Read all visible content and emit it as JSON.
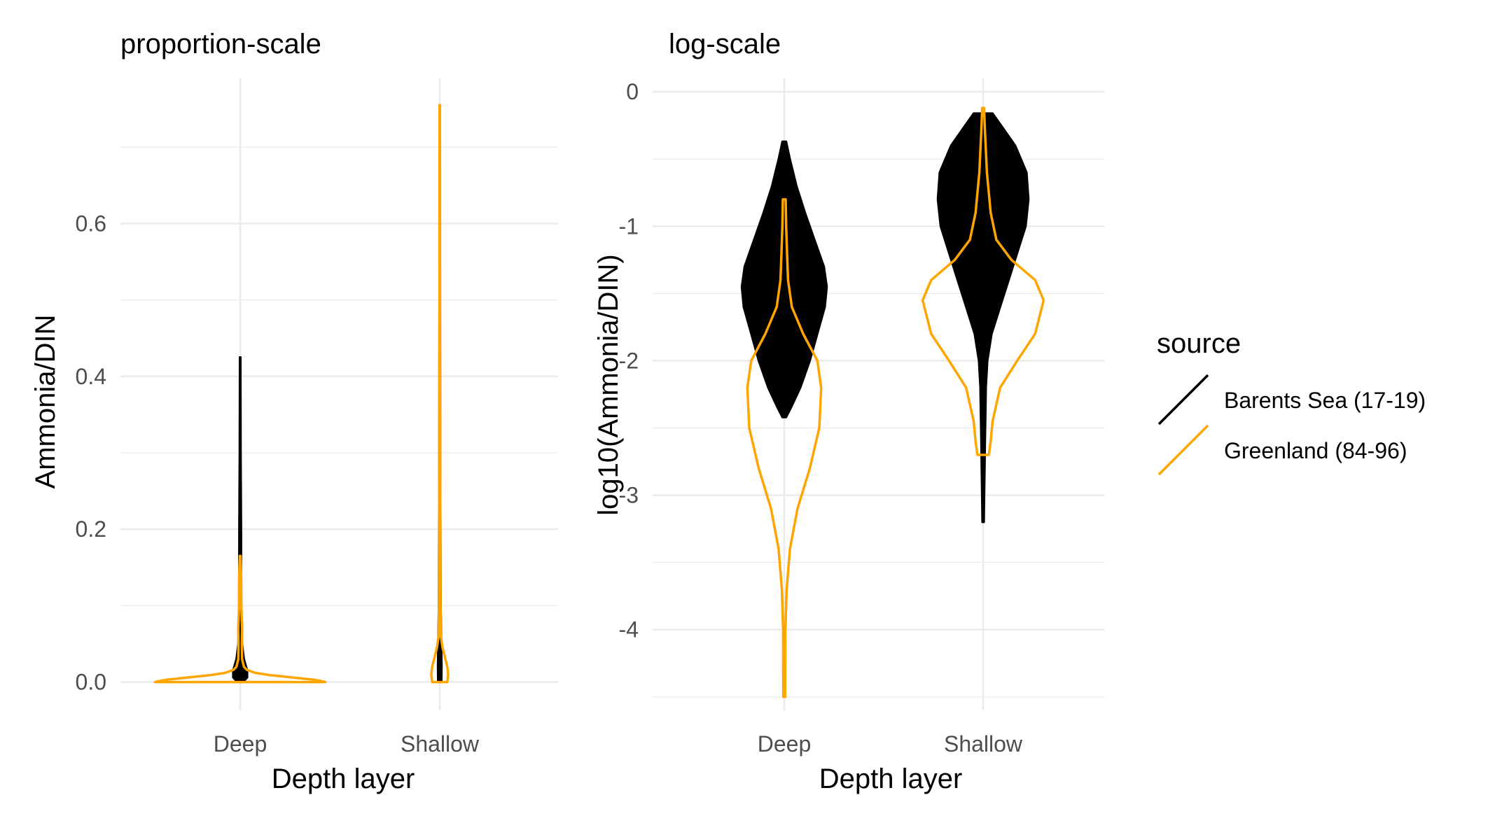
{
  "chart_data": [
    {
      "type": "violin",
      "title": "proportion-scale",
      "xlabel": "Depth layer",
      "ylabel": "Ammonia/DIN",
      "categories": [
        "Deep",
        "Shallow"
      ],
      "ylim": [
        -0.037,
        0.79
      ],
      "yticks": [
        0.0,
        0.2,
        0.4,
        0.6
      ],
      "ytick_labels": [
        "0.0",
        "0.2",
        "0.4",
        "0.6"
      ],
      "grid": true,
      "series": [
        {
          "name": "Barents Sea (17-19)",
          "color": "#000000",
          "fill": true,
          "violins": {
            "Deep": [
              [
                0.0,
                0.03
              ],
              [
                0.006,
                0.075
              ],
              [
                0.015,
                0.075
              ],
              [
                0.03,
                0.04
              ],
              [
                0.05,
                0.02
              ],
              [
                0.1,
                0.012
              ],
              [
                0.2,
                0.01
              ],
              [
                0.3,
                0.006
              ],
              [
                0.425,
                0.004
              ]
            ],
            "Shallow": [
              [
                0.0,
                0.018
              ],
              [
                0.02,
                0.02
              ],
              [
                0.05,
                0.016
              ],
              [
                0.1,
                0.01
              ],
              [
                0.3,
                0.006
              ],
              [
                0.5,
                0.004
              ],
              [
                0.66,
                0.002
              ]
            ]
          }
        },
        {
          "name": "Greenland (84-96)",
          "color": "#ffa500",
          "fill": false,
          "violins": {
            "Deep": [
              [
                0.0,
                0.9
              ],
              [
                0.0015,
                0.85
              ],
              [
                0.003,
                0.78
              ],
              [
                0.006,
                0.55
              ],
              [
                0.009,
                0.32
              ],
              [
                0.012,
                0.16
              ],
              [
                0.016,
                0.07
              ],
              [
                0.02,
                0.04
              ],
              [
                0.03,
                0.02
              ],
              [
                0.05,
                0.018
              ],
              [
                0.07,
                0.02
              ],
              [
                0.1,
                0.012
              ],
              [
                0.14,
                0.01
              ],
              [
                0.165,
                0.004
              ]
            ],
            "Shallow": [
              [
                0.0,
                0.08
              ],
              [
                0.01,
                0.09
              ],
              [
                0.02,
                0.08
              ],
              [
                0.03,
                0.06
              ],
              [
                0.045,
                0.03
              ],
              [
                0.06,
                0.012
              ],
              [
                0.1,
                0.008
              ],
              [
                0.2,
                0.006
              ],
              [
                0.4,
                0.004
              ],
              [
                0.6,
                0.003
              ],
              [
                0.755,
                0.002
              ]
            ]
          }
        }
      ]
    },
    {
      "type": "violin",
      "title": "log-scale",
      "xlabel": "Depth layer",
      "ylabel": "log10(Ammonia/DIN)",
      "categories": [
        "Deep",
        "Shallow"
      ],
      "ylim": [
        -4.6,
        0.1
      ],
      "yticks": [
        0,
        -1,
        -2,
        -3,
        -4
      ],
      "ytick_labels": [
        "0",
        "-1",
        "-2",
        "-3",
        "-4"
      ],
      "grid": true,
      "series": [
        {
          "name": "Barents Sea (17-19)",
          "color": "#000000",
          "fill": true,
          "violins": {
            "Deep": [
              [
                -2.42,
                0.02
              ],
              [
                -2.35,
                0.07
              ],
              [
                -2.2,
                0.17
              ],
              [
                -2.0,
                0.27
              ],
              [
                -1.8,
                0.35
              ],
              [
                -1.6,
                0.43
              ],
              [
                -1.45,
                0.45
              ],
              [
                -1.3,
                0.42
              ],
              [
                -1.1,
                0.32
              ],
              [
                -0.9,
                0.22
              ],
              [
                -0.7,
                0.13
              ],
              [
                -0.5,
                0.06
              ],
              [
                -0.37,
                0.02
              ]
            ],
            "Shallow": [
              [
                -3.2,
                0.008
              ],
              [
                -3.0,
                0.012
              ],
              [
                -2.8,
                0.016
              ],
              [
                -2.6,
                0.02
              ],
              [
                -2.4,
                0.025
              ],
              [
                -2.2,
                0.03
              ],
              [
                -2.0,
                0.045
              ],
              [
                -1.8,
                0.09
              ],
              [
                -1.6,
                0.18
              ],
              [
                -1.4,
                0.27
              ],
              [
                -1.2,
                0.36
              ],
              [
                -1.0,
                0.45
              ],
              [
                -0.8,
                0.48
              ],
              [
                -0.6,
                0.46
              ],
              [
                -0.4,
                0.34
              ],
              [
                -0.25,
                0.19
              ],
              [
                -0.16,
                0.1
              ]
            ]
          }
        },
        {
          "name": "Greenland (84-96)",
          "color": "#ffa500",
          "fill": false,
          "violins": {
            "Deep": [
              [
                -4.5,
                0.01
              ],
              [
                -4.0,
                0.012
              ],
              [
                -3.7,
                0.025
              ],
              [
                -3.4,
                0.06
              ],
              [
                -3.1,
                0.14
              ],
              [
                -2.8,
                0.27
              ],
              [
                -2.5,
                0.37
              ],
              [
                -2.2,
                0.39
              ],
              [
                -2.0,
                0.35
              ],
              [
                -1.8,
                0.2
              ],
              [
                -1.6,
                0.08
              ],
              [
                -1.4,
                0.04
              ],
              [
                -1.2,
                0.03
              ],
              [
                -1.0,
                0.02
              ],
              [
                -0.8,
                0.015
              ]
            ],
            "Shallow": [
              [
                -2.7,
                0.06
              ],
              [
                -2.6,
                0.08
              ],
              [
                -2.45,
                0.1
              ],
              [
                -2.2,
                0.18
              ],
              [
                -2.0,
                0.36
              ],
              [
                -1.8,
                0.55
              ],
              [
                -1.55,
                0.64
              ],
              [
                -1.4,
                0.55
              ],
              [
                -1.25,
                0.3
              ],
              [
                -1.1,
                0.14
              ],
              [
                -0.9,
                0.08
              ],
              [
                -0.6,
                0.04
              ],
              [
                -0.3,
                0.02
              ],
              [
                -0.12,
                0.01
              ]
            ]
          }
        }
      ]
    }
  ],
  "legend": {
    "title": "source",
    "placement": "right",
    "items": [
      {
        "label": "Barents Sea (17-19)",
        "color": "#000000"
      },
      {
        "label": "Greenland (84-96)",
        "color": "#ffa500"
      }
    ]
  }
}
